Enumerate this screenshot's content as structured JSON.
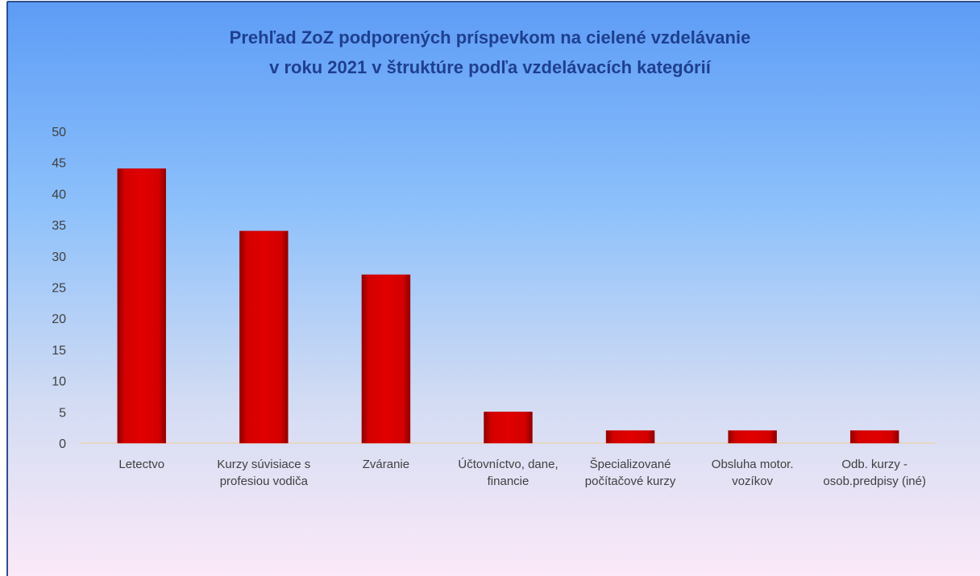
{
  "chart_data": {
    "type": "bar",
    "title": [
      "Prehľad ZoZ podporených príspevkom na cielené vzdelávanie",
      "v roku 2021 v  štruktúre podľa vzdelávacích kategórií"
    ],
    "categories": [
      "Letectvo",
      "Kurzy súvisiace s profesiou vodiča",
      "Zváranie",
      "Účtovníctvo, dane, financie",
      "Špecializované počítačové kurzy",
      "Obsluha motor. vozíkov",
      "Odb. kurzy - osob.predpisy (iné)"
    ],
    "values": [
      44,
      34,
      27,
      5,
      2,
      2,
      2
    ],
    "color": "#c00000",
    "ylim": [
      0,
      50
    ],
    "yticks": [
      0,
      5,
      10,
      15,
      20,
      25,
      30,
      35,
      40,
      45,
      50
    ],
    "grid": false
  }
}
